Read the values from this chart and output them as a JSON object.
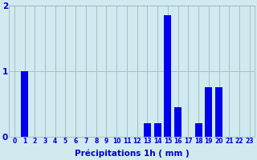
{
  "values": [
    0,
    1.0,
    0,
    0,
    0,
    0,
    0,
    0,
    0,
    0,
    0,
    0,
    0,
    0.2,
    0.2,
    1.85,
    0.45,
    0,
    0.2,
    0.75,
    0.75,
    0,
    0,
    0
  ],
  "categories": [
    "0",
    "1",
    "2",
    "3",
    "4",
    "5",
    "6",
    "7",
    "8",
    "9",
    "10",
    "11",
    "12",
    "13",
    "14",
    "15",
    "16",
    "17",
    "18",
    "19",
    "20",
    "21",
    "22",
    "23"
  ],
  "bar_color": "#0000ee",
  "bg_color": "#d0eaf0",
  "grid_color": "#a0b8c0",
  "axis_label_color": "#0000cc",
  "tick_label_color": "#0000cc",
  "xlabel": "Précipitations 1h ( mm )",
  "ylim": [
    0,
    2.0
  ],
  "yticks": [
    0,
    1,
    2
  ],
  "xlabel_fontsize": 7.5,
  "tick_fontsize": 5.5
}
